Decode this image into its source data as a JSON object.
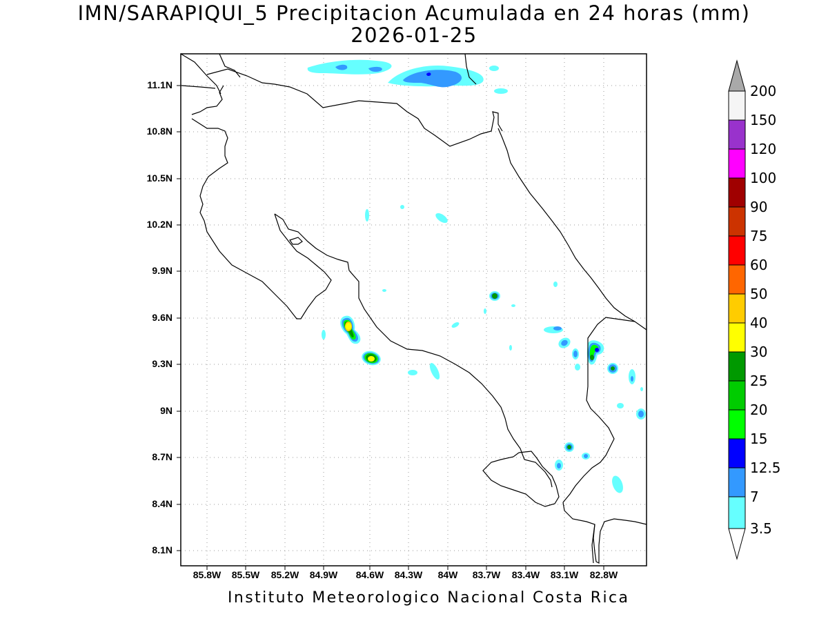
{
  "title": {
    "line1": "IMN/SARAPIQUI_5 Precipitacion Acumulada en 24 horas (mm)",
    "line2": "2026-01-25"
  },
  "footer": "Instituto Meteorologico Nacional Costa Rica",
  "axes": {
    "y_ticks": [
      "11.1N",
      "10.8N",
      "10.5N",
      "10.2N",
      "9.9N",
      "9.6N",
      "9.3N",
      "9N",
      "8.7N",
      "8.4N",
      "8.1N"
    ],
    "x_ticks": [
      "85.8W",
      "85.5W",
      "85.2W",
      "84.9W",
      "84.6W",
      "84.3W",
      "84W",
      "83.7W",
      "83.4W",
      "83.1W",
      "82.8W"
    ],
    "grid": "dotted"
  },
  "colorbar": {
    "labels": [
      "200",
      "150",
      "120",
      "100",
      "90",
      "75",
      "60",
      "50",
      "40",
      "30",
      "25",
      "20",
      "15",
      "12.5",
      "7",
      "3.5"
    ],
    "top_color": "#a9a9a9",
    "colors": [
      "#f5f5f5",
      "#9932cc",
      "#ff00ff",
      "#a00000",
      "#cc3300",
      "#ff0000",
      "#ff6600",
      "#ffcc00",
      "#ffff00",
      "#009900",
      "#00cc00",
      "#00ff00",
      "#0000ff",
      "#3399ff",
      "#66ffff"
    ],
    "bottom_color": "#ffffff"
  },
  "precip_colors": {
    "c35": "#66ffff",
    "c7": "#3399ff",
    "c125": "#0000ff",
    "c15": "#00ff00",
    "c25": "#009900",
    "c40": "#ffff00",
    "c50": "#ffcc00"
  }
}
